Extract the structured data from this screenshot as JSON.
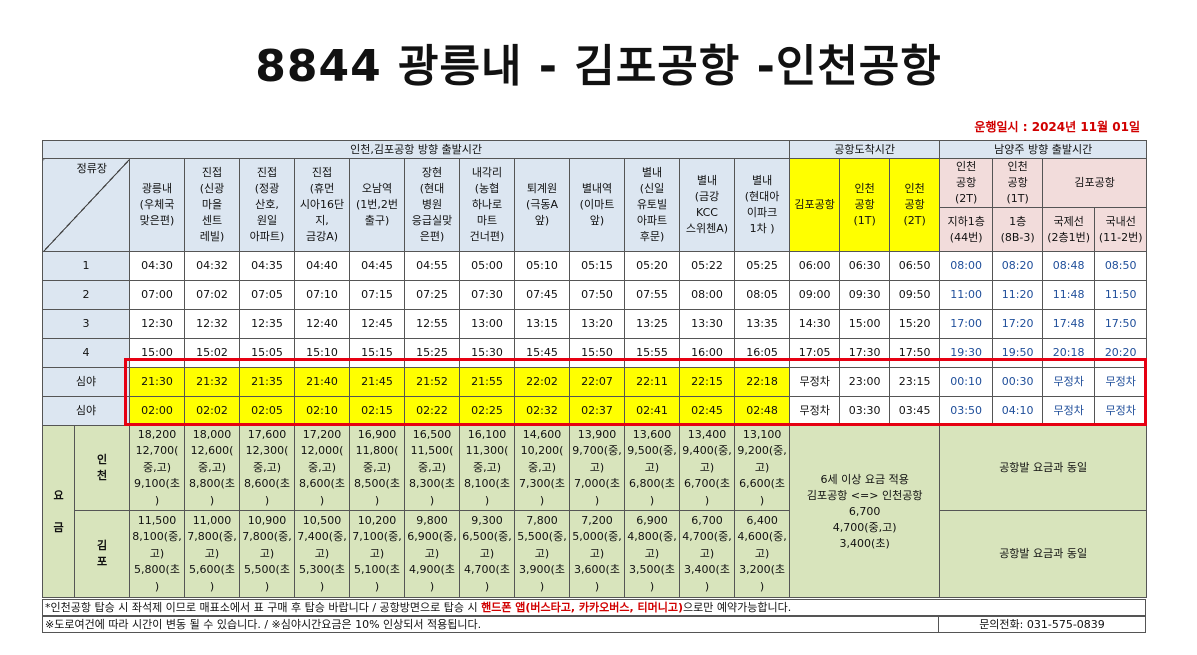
{
  "title": "8844 광릉내 - 김포공항 -인천공항",
  "operation_date": "운행일시 : 2024년 11월 01일",
  "header": {
    "group_departure": "인천,김포공항 방향 출발시간",
    "group_arrival": "공항도착시간",
    "group_return": "남양주 방향 출발시간",
    "stop_label": "정류장",
    "stops": [
      "광릉내\n(우체국\n맞은편)",
      "진접\n(신광\n마을\n센트\n레빌)",
      "진접\n(정광\n산호,\n원일\n아파트)",
      "진접\n(휴먼\n시아16단\n지,\n금강A)",
      "오남역\n(1번,2번\n출구)",
      "장현\n(현대\n병원\n응급실맞\n은편)",
      "내각리\n(농협\n하나로\n마트\n건너편)",
      "퇴계원\n(극동A\n앞)",
      "별내역\n(이마트\n앞)",
      "별내\n(신일\n유토빌\n아파트\n후문)",
      "별내\n(금강\nKCC\n스위첸A)",
      "별내\n(현대아\n이파크\n1차 )"
    ],
    "arrival_cols": [
      "김포공항",
      "인천\n공항\n(1T)",
      "인천\n공항\n(2T)"
    ],
    "return_cols_top": [
      "인천\n공항\n(2T)",
      "인천\n공항\n(1T)",
      "김포공항"
    ],
    "return_cols_sub": [
      "지하1층\n(44번)",
      "1층\n(8B-3)",
      "국제선\n(2층1번)",
      "국내선\n(11-2번)"
    ]
  },
  "rows": [
    {
      "label": "1",
      "dep": [
        "04:30",
        "04:32",
        "04:35",
        "04:40",
        "04:45",
        "04:55",
        "05:00",
        "05:10",
        "05:15",
        "05:20",
        "05:22",
        "05:25"
      ],
      "arr": [
        "06:00",
        "06:30",
        "06:50"
      ],
      "ret": [
        "08:00",
        "08:20",
        "08:48",
        "08:50"
      ]
    },
    {
      "label": "2",
      "dep": [
        "07:00",
        "07:02",
        "07:05",
        "07:10",
        "07:15",
        "07:25",
        "07:30",
        "07:45",
        "07:50",
        "07:55",
        "08:00",
        "08:05"
      ],
      "arr": [
        "09:00",
        "09:30",
        "09:50"
      ],
      "ret": [
        "11:00",
        "11:20",
        "11:48",
        "11:50"
      ]
    },
    {
      "label": "3",
      "dep": [
        "12:30",
        "12:32",
        "12:35",
        "12:40",
        "12:45",
        "12:55",
        "13:00",
        "13:15",
        "13:20",
        "13:25",
        "13:30",
        "13:35"
      ],
      "arr": [
        "14:30",
        "15:00",
        "15:20"
      ],
      "ret": [
        "17:00",
        "17:20",
        "17:48",
        "17:50"
      ]
    },
    {
      "label": "4",
      "dep": [
        "15:00",
        "15:02",
        "15:05",
        "15:10",
        "15:15",
        "15:25",
        "15:30",
        "15:45",
        "15:50",
        "15:55",
        "16:00",
        "16:05"
      ],
      "arr": [
        "17:05",
        "17:30",
        "17:50"
      ],
      "ret": [
        "19:30",
        "19:50",
        "20:18",
        "20:20"
      ]
    },
    {
      "label": "심야",
      "dep": [
        "21:30",
        "21:32",
        "21:35",
        "21:40",
        "21:45",
        "21:52",
        "21:55",
        "22:02",
        "22:07",
        "22:11",
        "22:15",
        "22:18"
      ],
      "arr": [
        "무정차",
        "23:00",
        "23:15"
      ],
      "ret": [
        "00:10",
        "00:30",
        "무정차",
        "무정차"
      ]
    },
    {
      "label": "심야",
      "dep": [
        "02:00",
        "02:02",
        "02:05",
        "02:10",
        "02:15",
        "02:22",
        "02:25",
        "02:32",
        "02:37",
        "02:41",
        "02:45",
        "02:48"
      ],
      "arr": [
        "무정차",
        "03:30",
        "03:45"
      ],
      "ret": [
        "03:50",
        "04:10",
        "무정차",
        "무정차"
      ]
    }
  ],
  "fare": {
    "label": "요\n\n금",
    "incheon_label": "인\n천",
    "gimpo_label": "김\n포",
    "incheon": [
      "18,200\n12,700(\n중,고)\n9,100(초\n)",
      "18,000\n12,600(\n중,고)\n8,800(초\n)",
      "17,600\n12,300(\n중,고)\n8,600(초\n)",
      "17,200\n12,000(\n중,고)\n8,600(초\n)",
      "16,900\n11,800(\n중,고)\n8,500(초\n)",
      "16,500\n11,500(\n중,고)\n8,300(초\n)",
      "16,100\n11,300(\n중,고)\n8,100(초\n)",
      "14,600\n10,200(\n중,고)\n7,300(초\n)",
      "13,900\n9,700(중,\n고)\n7,000(초\n)",
      "13,600\n9,500(중,\n고)\n6,800(초\n)",
      "13,400\n9,400(중,\n고)\n6,700(초\n)",
      "13,100\n9,200(중,\n고)\n6,600(초\n)"
    ],
    "gimpo": [
      "11,500\n8,100(중,\n고)\n5,800(초\n)",
      "11,000\n7,800(중,\n고)\n5,600(초\n)",
      "10,900\n7,800(중,\n고)\n5,500(초\n)",
      "10,500\n7,400(중,\n고)\n5,300(초\n)",
      "10,200\n7,100(중,\n고)\n5,100(초\n)",
      "9,800\n6,900(중,\n고)\n4,900(초\n)",
      "9,300\n6,500(중,\n고)\n4,700(초\n)",
      "7,800\n5,500(중,\n고)\n3,900(초\n)",
      "7,200\n5,000(중,\n고)\n3,600(초\n)",
      "6,900\n4,800(중,\n고)\n3,500(초\n)",
      "6,700\n4,700(중,\n고)\n3,400(초\n)",
      "6,400\n4,600(중,\n고)\n3,200(초\n)"
    ],
    "airport_fare": "6세 이상 요금 적용\n김포공항 <=> 인천공항\n6,700\n4,700(중,고)\n3,400(초)",
    "return_fare_incheon": "공항발 요금과 동일",
    "return_fare_gimpo": "공항발 요금과 동일"
  },
  "notes": {
    "line1_pre": "*인천공항 탑승 시 좌석제 이므로 매표소에서 표 구매 후 탑승 바랍니다 / 공항방면으로 탑승 시 ",
    "line1_highlight": "핸드폰 앱(버스타고, 카카오버스, 티머니고)",
    "line1_post": "으로만 예약가능합니다.",
    "line2": "※도로여건에 따라 시간이 변동 될 수 있습니다.  / ※심야시간요금은 10% 인상되서 적용됩니다.",
    "phone": "문의전화: 031-575-0839"
  },
  "colors": {
    "header_blue": "#dce6f1",
    "highlight_yellow": "#ffff00",
    "pink": "#f2dcdb",
    "fare_green": "#d8e4bc",
    "red_box": "#e60012",
    "note_red": "#d10000"
  }
}
